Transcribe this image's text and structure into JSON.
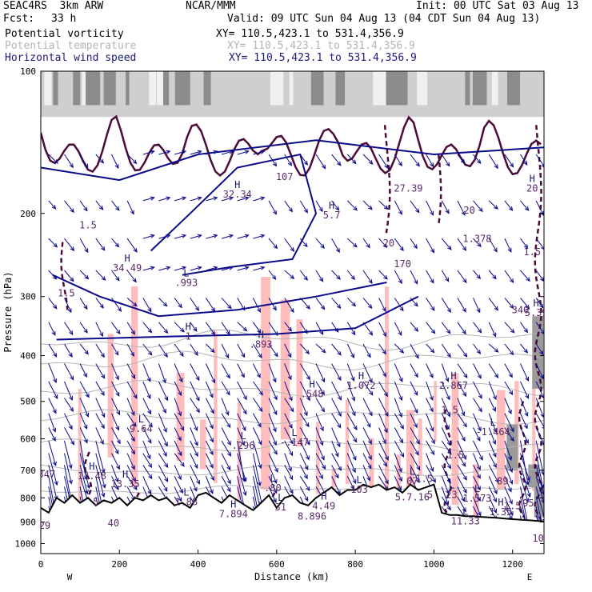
{
  "header": {
    "model": "SEAC4RS  3km ARW",
    "org": "NCAR/MMM",
    "init": "Init: 00 UTC Sat 03 Aug 13",
    "fcst_label": "Fcst:",
    "fcst_value": "33 h",
    "valid": "Valid: 09 UTC Sun 04 Aug 13 (04 CDT Sun 04 Aug 13)",
    "fields": [
      {
        "name": "Potential vorticity",
        "xy": "XY= 110.5,423.1 to 531.4,356.9",
        "color": "#000000"
      },
      {
        "name": "Potential temperature",
        "xy": "XY= 110.5,423.1 to 531.4,356.9",
        "color": "#b4b4b4"
      },
      {
        "name": "Horizontal wind speed",
        "xy": "XY= 110.5,423.1 to 531.4,356.9",
        "color": "#1a1a7a"
      }
    ]
  },
  "chart_data": {
    "type": "cross-section",
    "xlabel": "Distance (km)",
    "ylabel": "Pressure (hPa)",
    "xlim": [
      0,
      1280
    ],
    "ylim": [
      1050,
      100
    ],
    "x_ticks": [
      0,
      200,
      400,
      600,
      800,
      1000,
      1200
    ],
    "y_ticks": [
      100,
      200,
      300,
      400,
      500,
      600,
      700,
      800,
      900,
      1000
    ],
    "y_scale": "log-pressure",
    "endpoint_labels": {
      "left": "W",
      "right": "E"
    },
    "colors": {
      "pv_fill": "#ffbcbc",
      "pv_contour": "#4a0a3a",
      "theta": "#b4b4b4",
      "wind": "#0a0a8a",
      "terrain": "#000000"
    },
    "terrain": [
      [
        0,
        840
      ],
      [
        20,
        860
      ],
      [
        40,
        800
      ],
      [
        60,
        820
      ],
      [
        80,
        790
      ],
      [
        100,
        820
      ],
      [
        120,
        800
      ],
      [
        140,
        830
      ],
      [
        160,
        810
      ],
      [
        180,
        820
      ],
      [
        200,
        800
      ],
      [
        220,
        830
      ],
      [
        240,
        800
      ],
      [
        260,
        810
      ],
      [
        280,
        790
      ],
      [
        300,
        810
      ],
      [
        320,
        800
      ],
      [
        340,
        830
      ],
      [
        360,
        820
      ],
      [
        380,
        840
      ],
      [
        400,
        790
      ],
      [
        420,
        780
      ],
      [
        440,
        800
      ],
      [
        460,
        820
      ],
      [
        480,
        790
      ],
      [
        500,
        810
      ],
      [
        520,
        830
      ],
      [
        540,
        850
      ],
      [
        560,
        820
      ],
      [
        580,
        790
      ],
      [
        600,
        840
      ],
      [
        620,
        800
      ],
      [
        640,
        790
      ],
      [
        660,
        820
      ],
      [
        680,
        830
      ],
      [
        700,
        800
      ],
      [
        720,
        780
      ],
      [
        740,
        760
      ],
      [
        760,
        790
      ],
      [
        780,
        770
      ],
      [
        800,
        770
      ],
      [
        820,
        750
      ],
      [
        840,
        760
      ],
      [
        860,
        750
      ],
      [
        880,
        770
      ],
      [
        900,
        760
      ],
      [
        920,
        780
      ],
      [
        940,
        750
      ],
      [
        960,
        770
      ],
      [
        980,
        760
      ],
      [
        1000,
        750
      ],
      [
        1020,
        860
      ],
      [
        1040,
        870
      ],
      [
        1060,
        870
      ],
      [
        1080,
        875
      ],
      [
        1100,
        875
      ],
      [
        1120,
        878
      ],
      [
        1140,
        880
      ],
      [
        1160,
        882
      ],
      [
        1180,
        885
      ],
      [
        1200,
        888
      ],
      [
        1220,
        890
      ],
      [
        1240,
        892
      ],
      [
        1260,
        895
      ],
      [
        1280,
        898
      ]
    ],
    "annotations": [
      {
        "x": 120,
        "p": 215,
        "text": "1.5"
      },
      {
        "x": 220,
        "p": 265,
        "text": "34.49",
        "hl": "H"
      },
      {
        "x": 65,
        "p": 300,
        "text": "1.5"
      },
      {
        "x": 500,
        "p": 185,
        "text": "32.34",
        "hl": "H"
      },
      {
        "x": 620,
        "p": 170,
        "text": "107"
      },
      {
        "x": 370,
        "p": 285,
        "text": ".993",
        "hl": "L"
      },
      {
        "x": 740,
        "p": 205,
        "text": "5.7",
        "hl": "H"
      },
      {
        "x": 935,
        "p": 180,
        "text": "27.39"
      },
      {
        "x": 885,
        "p": 235,
        "text": "20"
      },
      {
        "x": 920,
        "p": 260,
        "text": "170"
      },
      {
        "x": 1090,
        "p": 200,
        "text": "20"
      },
      {
        "x": 1110,
        "p": 230,
        "text": "1.378"
      },
      {
        "x": 1250,
        "p": 180,
        "text": "20",
        "hl": "H"
      },
      {
        "x": 1250,
        "p": 245,
        "text": "1.5"
      },
      {
        "x": 1220,
        "p": 325,
        "text": "340"
      },
      {
        "x": 1260,
        "p": 330,
        "text": "5.39",
        "hl": "H"
      },
      {
        "x": 375,
        "p": 370,
        "text": "1",
        "hl": "H"
      },
      {
        "x": 560,
        "p": 385,
        "text": ".893",
        "hl": "H"
      },
      {
        "x": 690,
        "p": 490,
        "text": ".548",
        "hl": "H"
      },
      {
        "x": 815,
        "p": 470,
        "text": "1.072",
        "hl": "H"
      },
      {
        "x": 1050,
        "p": 470,
        "text": "2.867",
        "hl": "H"
      },
      {
        "x": 1040,
        "p": 530,
        "text": "1.5"
      },
      {
        "x": 255,
        "p": 580,
        "text": "9.64",
        "hl": "L"
      },
      {
        "x": 515,
        "p": 630,
        "text": ".296",
        "hl": "L"
      },
      {
        "x": 645,
        "p": 620,
        "text": "-.147",
        "hl": "L"
      },
      {
        "x": 1150,
        "p": 590,
        "text": "-1.464",
        "hl": "L"
      },
      {
        "x": 1055,
        "p": 660,
        "text": "1.5"
      },
      {
        "x": 15,
        "p": 725,
        "text": "347"
      },
      {
        "x": 130,
        "p": 730,
        "text": "13.48",
        "hl": "H"
      },
      {
        "x": 215,
        "p": 760,
        "text": "13.35",
        "hl": "H"
      },
      {
        "x": 590,
        "p": 775,
        "text": ".80",
        "hl": "L"
      },
      {
        "x": 810,
        "p": 780,
        "text": "103",
        "hl": "L"
      },
      {
        "x": 945,
        "p": 750,
        "text": "07",
        "hl": "L"
      },
      {
        "x": 975,
        "p": 740,
        "text": "1.5"
      },
      {
        "x": 1175,
        "p": 750,
        "text": "89"
      },
      {
        "x": 945,
        "p": 810,
        "text": "5.7.16"
      },
      {
        "x": 990,
        "p": 800,
        "text": "5"
      },
      {
        "x": 1045,
        "p": 800,
        "text": "23",
        "hl": "L"
      },
      {
        "x": 1110,
        "p": 815,
        "text": "1.573",
        "hl": "L"
      },
      {
        "x": 140,
        "p": 830,
        "text": "5"
      },
      {
        "x": 370,
        "p": 830,
        "text": "1.88",
        "hl": "L"
      },
      {
        "x": 720,
        "p": 845,
        "text": "4.49",
        "hl": "H"
      },
      {
        "x": 610,
        "p": 850,
        "text": "31",
        "hl": "L"
      },
      {
        "x": 490,
        "p": 880,
        "text": "7.894",
        "hl": "H"
      },
      {
        "x": 690,
        "p": 890,
        "text": "8.896"
      },
      {
        "x": 1170,
        "p": 870,
        "text": "1.35",
        "hl": "H"
      },
      {
        "x": 1080,
        "p": 910,
        "text": "11.33",
        "hl": "L"
      },
      {
        "x": 1200,
        "p": 845,
        "text": "1.5"
      },
      {
        "x": 1240,
        "p": 835,
        "text": "95"
      },
      {
        "x": 10,
        "p": 930,
        "text": "29"
      },
      {
        "x": 185,
        "p": 920,
        "text": "40"
      },
      {
        "x": 1265,
        "p": 990,
        "text": "10"
      }
    ]
  }
}
